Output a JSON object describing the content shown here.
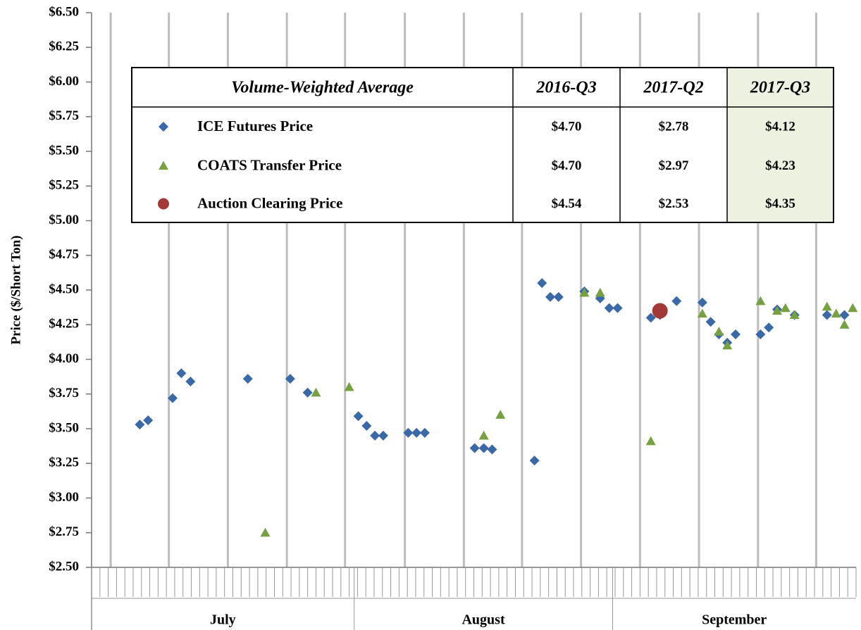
{
  "chart_data": {
    "type": "scatter",
    "ylabel": "Price ($/Short Ton)",
    "xlim": [
      0,
      92
    ],
    "ylim": [
      2.5,
      6.5
    ],
    "yticks": [
      {
        "value": 2.5,
        "label": "$2.50"
      },
      {
        "value": 2.75,
        "label": "$2.75"
      },
      {
        "value": 3.0,
        "label": "$3.00"
      },
      {
        "value": 3.25,
        "label": "$3.25"
      },
      {
        "value": 3.5,
        "label": "$3.50"
      },
      {
        "value": 3.75,
        "label": "$3.75"
      },
      {
        "value": 4.0,
        "label": "$4.00"
      },
      {
        "value": 4.25,
        "label": "$4.25"
      },
      {
        "value": 4.5,
        "label": "$4.50"
      },
      {
        "value": 4.75,
        "label": "$4.75"
      },
      {
        "value": 5.0,
        "label": "$5.00"
      },
      {
        "value": 5.25,
        "label": "$5.25"
      },
      {
        "value": 5.5,
        "label": "$5.50"
      },
      {
        "value": 5.75,
        "label": "$5.75"
      },
      {
        "value": 6.0,
        "label": "$6.00"
      },
      {
        "value": 6.25,
        "label": "$6.25"
      },
      {
        "value": 6.5,
        "label": "$6.50"
      }
    ],
    "x_gridlines": [
      2.3,
      9.3,
      16.4,
      23.5,
      30.5,
      37.7,
      44.8,
      51.8,
      58.9,
      66.0,
      73.1,
      80.2,
      87.2
    ],
    "x_groups": [
      {
        "label": "July",
        "start": 0,
        "end": 31.6
      },
      {
        "label": "August",
        "start": 31.6,
        "end": 62.7
      },
      {
        "label": "September",
        "start": 62.7,
        "end": 92
      }
    ],
    "grid": true,
    "series": [
      {
        "name": "ICE Futures Price",
        "marker": "diamond",
        "color": "#3b68a6",
        "x": [
          5.8,
          6.8,
          9.75,
          10.8,
          11.9,
          18.8,
          23.9,
          26.0,
          32.1,
          33.1,
          34.1,
          35.1,
          38.1,
          39.1,
          40.1,
          46.1,
          47.2,
          48.2,
          53.3,
          54.2,
          55.2,
          56.2,
          59.3,
          61.2,
          62.3,
          63.3,
          67.3,
          68.4,
          70.4,
          73.5,
          74.5,
          75.5,
          76.5,
          77.5,
          80.5,
          81.5,
          82.5,
          84.6,
          88.5,
          90.6
        ],
        "values": [
          3.53,
          3.56,
          3.72,
          3.9,
          3.84,
          3.86,
          3.86,
          3.76,
          3.59,
          3.52,
          3.45,
          3.45,
          3.47,
          3.47,
          3.47,
          3.36,
          3.36,
          3.35,
          3.27,
          4.55,
          4.45,
          4.45,
          4.49,
          4.44,
          4.37,
          4.37,
          4.3,
          4.32,
          4.42,
          4.41,
          4.27,
          4.18,
          4.12,
          4.18,
          4.18,
          4.23,
          4.36,
          4.32,
          4.32,
          4.32
        ]
      },
      {
        "name": "COATS Transfer Price",
        "marker": "triangle",
        "color": "#76a042",
        "x": [
          20.9,
          27.0,
          31.0,
          47.2,
          49.2,
          59.3,
          61.2,
          67.3,
          73.5,
          75.5,
          76.5,
          80.5,
          82.5,
          83.5,
          84.6,
          88.5,
          89.6,
          90.6,
          91.6
        ],
        "values": [
          2.75,
          3.76,
          3.8,
          3.45,
          3.6,
          4.48,
          4.48,
          3.41,
          4.33,
          4.2,
          4.1,
          4.42,
          4.35,
          4.37,
          4.32,
          4.38,
          4.33,
          4.25,
          4.37
        ]
      },
      {
        "name": "Auction Clearing Price",
        "marker": "circle",
        "color": "#a23838",
        "x": [
          68.4
        ],
        "values": [
          4.35
        ]
      }
    ],
    "summary_table": {
      "header": [
        "Volume-Weighted Average",
        "2016-Q3",
        "2017-Q2",
        "2017-Q3"
      ],
      "highlight_color": "#edf1e0",
      "rows": [
        [
          "$4.70",
          "$2.78",
          "$4.12"
        ],
        [
          "$4.70",
          "$2.97",
          "$4.23"
        ],
        [
          "$4.54",
          "$2.53",
          "$4.35"
        ]
      ]
    }
  }
}
